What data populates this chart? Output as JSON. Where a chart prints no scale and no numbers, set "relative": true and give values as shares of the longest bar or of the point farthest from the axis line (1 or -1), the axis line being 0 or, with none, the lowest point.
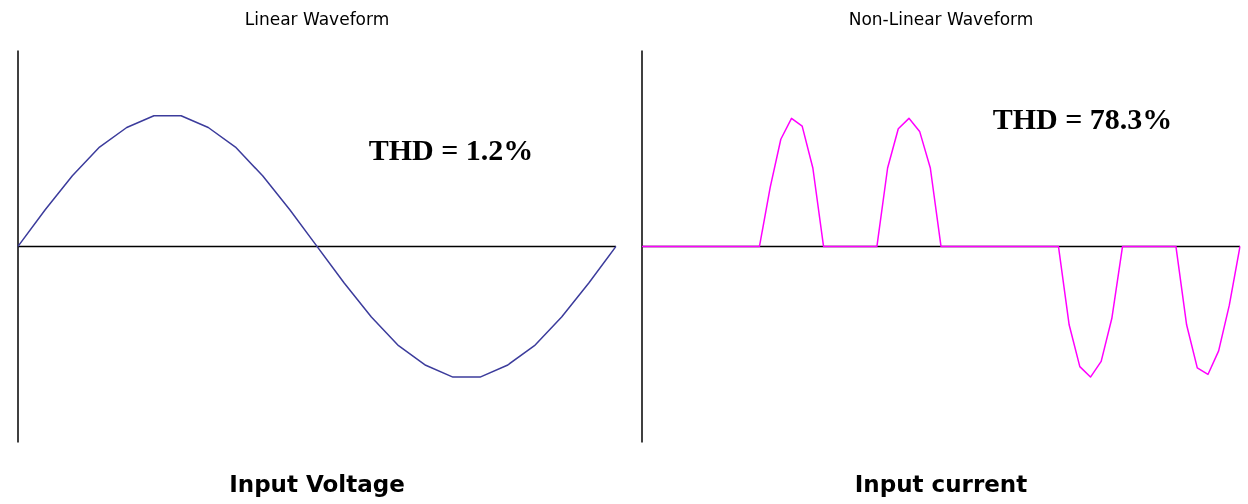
{
  "chart_data": [
    {
      "type": "line",
      "title": "Linear Waveform",
      "xlabel": "Input Voltage",
      "relative": true,
      "tick_labels": false,
      "grid": false,
      "legend": false,
      "marker": "none",
      "annotations": [
        "THD = 1.2%"
      ],
      "categories": [
        null,
        null,
        null,
        null,
        null,
        null,
        null,
        null,
        null,
        null,
        null,
        null,
        null,
        null,
        null,
        null,
        null,
        null,
        null,
        null,
        null,
        null,
        null
      ],
      "series": [
        {
          "color": "#3c3c9c",
          "values": [
            0,
            0.28,
            0.54,
            0.76,
            0.91,
            1,
            1,
            0.91,
            0.76,
            0.54,
            0.28,
            0,
            -0.28,
            -0.54,
            -0.76,
            -0.91,
            -1,
            -1,
            -0.91,
            -0.76,
            -0.54,
            -0.28,
            0
          ]
        }
      ]
    },
    {
      "type": "line",
      "title": "Non-Linear Waveform",
      "xlabel": "Input current",
      "relative": true,
      "tick_labels": false,
      "grid": false,
      "legend": false,
      "marker": "none",
      "annotations": [
        "THD = 78.3%"
      ],
      "categories": [
        null,
        null,
        null,
        null,
        null,
        null,
        null,
        null,
        null,
        null,
        null,
        null,
        null,
        null,
        null,
        null,
        null,
        null,
        null,
        null,
        null,
        null,
        null,
        null,
        null,
        null,
        null,
        null,
        null,
        null,
        null,
        null,
        null,
        null,
        null,
        null,
        null,
        null,
        null,
        null,
        null,
        null,
        null,
        null,
        null,
        null,
        null,
        null,
        null,
        null,
        null,
        null,
        null,
        null,
        null,
        null,
        null
      ],
      "series": [
        {
          "color": "#ff00ff",
          "values": [
            0,
            0,
            0,
            0,
            0,
            0,
            0,
            0,
            0,
            0,
            0,
            0,
            0.45,
            0.82,
            0.98,
            0.92,
            0.6,
            0,
            0,
            0,
            0,
            0,
            0,
            0.6,
            0.9,
            0.98,
            0.88,
            0.6,
            0,
            0,
            0,
            0,
            0,
            0,
            0,
            0,
            0,
            0,
            0,
            0,
            -0.6,
            -0.92,
            -1,
            -0.88,
            -0.55,
            0,
            0,
            0,
            0,
            0,
            0,
            -0.6,
            -0.93,
            -0.98,
            -0.8,
            -0.45,
            0
          ]
        }
      ]
    }
  ]
}
